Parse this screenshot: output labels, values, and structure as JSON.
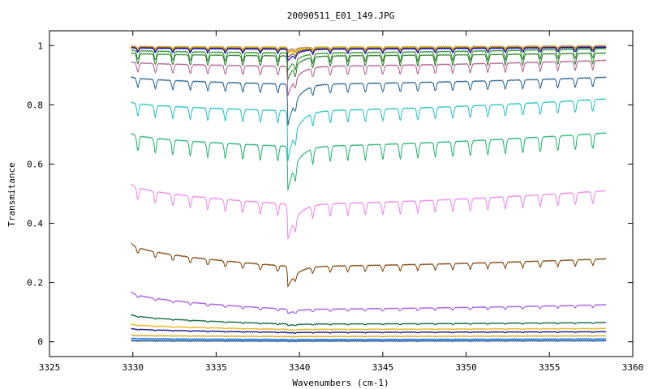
{
  "chart_data": {
    "type": "line",
    "title": "20090511_E01_149.JPG",
    "xlabel": "Wavenumbers (cm-1)",
    "ylabel": "Transmitance",
    "xlim": [
      3325,
      3360
    ],
    "ylim": [
      -0.05,
      1.05
    ],
    "x_range_data": [
      3329.9,
      3358.4
    ],
    "xticks": [
      "3325",
      "3330",
      "3335",
      "3340",
      "3345",
      "3350",
      "3355",
      "3360"
    ],
    "yticks": [
      "0",
      "0.2",
      "0.4",
      "0.6",
      "0.8",
      "1"
    ],
    "xtick_values": [
      3325,
      3330,
      3335,
      3340,
      3345,
      3350,
      3355,
      3360
    ],
    "ytick_values": [
      0,
      0.2,
      0.4,
      0.6,
      0.8,
      1
    ],
    "grid": false,
    "legend": "none",
    "series": [
      {
        "color": "#9c9c9c",
        "start": 0.998,
        "mid": 0.995,
        "end": 1.0,
        "comb": 0.006,
        "dip": 0.01
      },
      {
        "color": "#ff7f00",
        "start": 0.997,
        "mid": 0.994,
        "end": 0.998,
        "comb": 0.008,
        "dip": 0.015
      },
      {
        "color": "#c8c800",
        "start": 0.996,
        "mid": 0.993,
        "end": 0.997,
        "comb": 0.01,
        "dip": 0.02
      },
      {
        "color": "#8b4513",
        "start": 0.995,
        "mid": 0.99,
        "end": 0.996,
        "comb": 0.012,
        "dip": 0.03
      },
      {
        "color": "#0000cd",
        "start": 0.993,
        "mid": 0.988,
        "end": 0.994,
        "comb": 0.014,
        "dip": 0.04
      },
      {
        "color": "#228b22",
        "start": 0.985,
        "mid": 0.975,
        "end": 0.99,
        "comb": 0.03,
        "dip": 0.06
      },
      {
        "color": "#2a7a2a",
        "start": 0.975,
        "mid": 0.965,
        "end": 0.975,
        "comb": 0.035,
        "dip": 0.08
      },
      {
        "color": "#b05a8a",
        "start": 0.945,
        "mid": 0.93,
        "end": 0.95,
        "comb": 0.03,
        "dip": 0.1
      },
      {
        "color": "#1f5f8f",
        "start": 0.895,
        "mid": 0.87,
        "end": 0.893,
        "comb": 0.03,
        "dip": 0.14
      },
      {
        "color": "#20c0c0",
        "start": 0.81,
        "mid": 0.78,
        "end": 0.82,
        "comb": 0.04,
        "dip": 0.17
      },
      {
        "color": "#20b070",
        "start": 0.705,
        "mid": 0.66,
        "end": 0.705,
        "comb": 0.05,
        "dip": 0.15
      },
      {
        "color": "#ee82ee",
        "start": 0.535,
        "mid": 0.465,
        "end": 0.51,
        "comb": 0.04,
        "dip": 0.12
      },
      {
        "color": "#7b3f00",
        "start": 0.335,
        "mid": 0.255,
        "end": 0.28,
        "comb": 0.02,
        "dip": 0.07
      },
      {
        "color": "#a050e0",
        "start": 0.17,
        "mid": 0.11,
        "end": 0.125,
        "comb": 0.008,
        "dip": 0.015
      },
      {
        "color": "#006030",
        "start": 0.093,
        "mid": 0.06,
        "end": 0.065,
        "comb": 0.003,
        "dip": 0.005
      },
      {
        "color": "#e8b000",
        "start": 0.06,
        "mid": 0.042,
        "end": 0.045,
        "comb": 0.002,
        "dip": 0.003
      },
      {
        "color": "#00007f",
        "start": 0.045,
        "mid": 0.032,
        "end": 0.034,
        "comb": 0.002,
        "dip": 0.002
      },
      {
        "color": "#d4a000",
        "start": 0.022,
        "mid": 0.018,
        "end": 0.02,
        "comb": 0.001,
        "dip": 0.001
      },
      {
        "color": "#0070ff",
        "start": 0.012,
        "mid": 0.008,
        "end": 0.01,
        "comb": 0.001,
        "dip": 0.001
      },
      {
        "color": "#5a8f5a",
        "start": 0.006,
        "mid": 0.004,
        "end": 0.005,
        "comb": 0.001,
        "dip": 0.001
      },
      {
        "color": "#4060c0",
        "start": 0.003,
        "mid": 0.002,
        "end": 0.003,
        "comb": 0.001,
        "dip": 0.001
      }
    ],
    "strong_line_x": 3339.3,
    "comb_spacing": 1.05,
    "comb_offset": 3330.3
  }
}
